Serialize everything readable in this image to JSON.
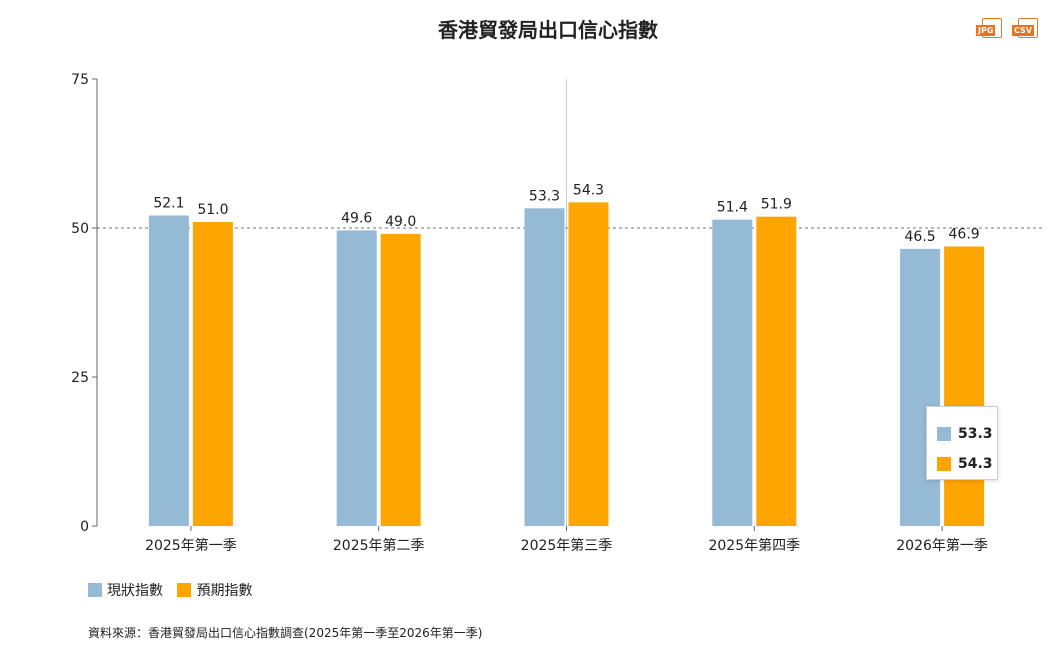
{
  "title": "香港貿發局出口信心指數",
  "export": {
    "jpg_label": "JPG",
    "csv_label": "CSV"
  },
  "chart_data": {
    "type": "bar",
    "title": "香港貿發局出口信心指數",
    "categories": [
      "2025年第一季",
      "2025年第二季",
      "2025年第三季",
      "2025年第四季",
      "2026年第一季"
    ],
    "series": [
      {
        "name": "現狀指數",
        "values": [
          52.1,
          49.6,
          53.3,
          51.4,
          46.5
        ],
        "color": "#95BAD6"
      },
      {
        "name": "預期指數",
        "values": [
          51.0,
          49.0,
          54.3,
          51.9,
          46.9
        ],
        "color": "#FFA500"
      }
    ],
    "ylim": [
      0,
      75
    ],
    "yticks": [
      0,
      25,
      50,
      75
    ],
    "reference_line": 50,
    "xlabel": "",
    "ylabel": ""
  },
  "tooltip": {
    "values": [
      "53.3",
      "54.3"
    ],
    "colors": [
      "#95BAD6",
      "#FFA500"
    ]
  },
  "legend": [
    {
      "label": "現狀指數",
      "color": "#95BAD6"
    },
    {
      "label": "預期指數",
      "color": "#FFA500"
    }
  ],
  "source": "資料來源：香港貿發局出口信心指數調查(2025年第一季至2026年第一季)"
}
